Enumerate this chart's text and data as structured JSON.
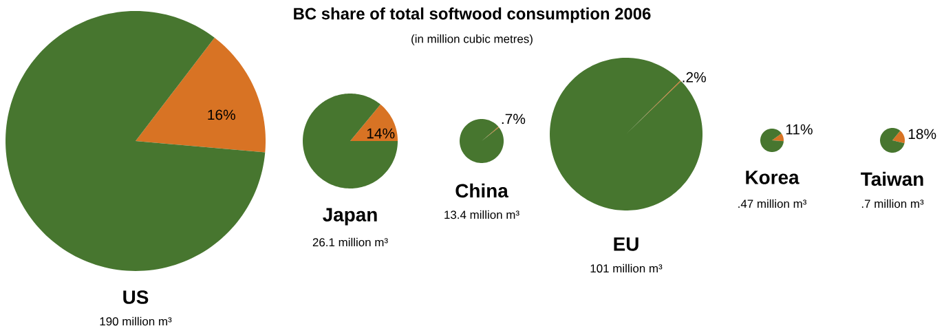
{
  "chart_data": [
    {
      "type": "other",
      "title": "BC share of total softwood consumption 2006",
      "subtitle": "(in million cubic metres)"
    },
    {
      "type": "pie",
      "title": "US",
      "subtitle": "190 million m³",
      "categories": [
        null,
        null
      ],
      "values": [
        16,
        84
      ],
      "colors": [
        "#d87324",
        "#47762f"
      ],
      "value_labels": [
        "16%",
        null
      ]
    },
    {
      "type": "pie",
      "title": "Japan",
      "subtitle": "26.1 million m³",
      "categories": [
        null,
        null
      ],
      "values": [
        14,
        86
      ],
      "colors": [
        "#d87324",
        "#47762f"
      ],
      "value_labels": [
        "14%",
        null
      ]
    },
    {
      "type": "pie",
      "title": "China",
      "subtitle": "13.4 million m³",
      "categories": [
        null,
        null
      ],
      "values": [
        0.7,
        99.3
      ],
      "colors": [
        "#d87324",
        "#47762f"
      ],
      "value_labels": [
        ".7%",
        null
      ]
    },
    {
      "type": "pie",
      "title": "EU",
      "subtitle": "101 million m³",
      "categories": [
        null,
        null
      ],
      "values": [
        0.2,
        99.8
      ],
      "colors": [
        "#d87324",
        "#47762f"
      ],
      "value_labels": [
        ".2%",
        null
      ]
    },
    {
      "type": "pie",
      "title": "Korea",
      "subtitle": ".47 million m³",
      "categories": [
        null,
        null
      ],
      "values": [
        11,
        89
      ],
      "colors": [
        "#d87324",
        "#47762f"
      ],
      "value_labels": [
        "11%",
        null
      ]
    },
    {
      "type": "pie",
      "title": "Taiwan",
      "subtitle": ".7 million m³",
      "categories": [
        null,
        null
      ],
      "values": [
        18,
        82
      ],
      "colors": [
        "#d87324",
        "#47762f"
      ],
      "value_labels": [
        "18%",
        null
      ]
    }
  ]
}
